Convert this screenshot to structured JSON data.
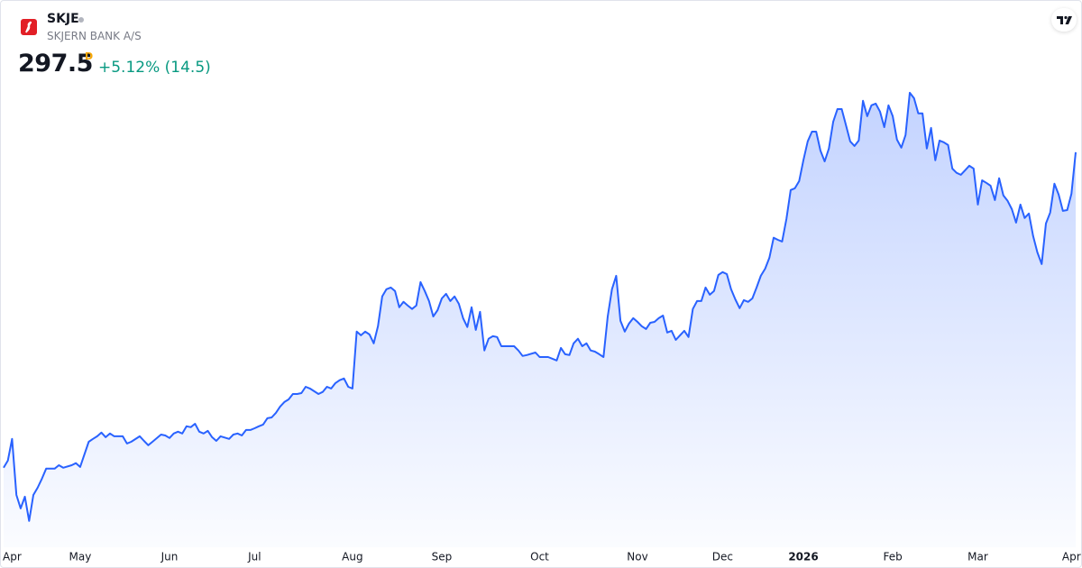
{
  "header": {
    "symbol": "SKJE",
    "name": "SKJERN BANK A/S",
    "price": "297.5",
    "interval": "D",
    "change": "+5.12% (14.5)"
  },
  "chart_data": {
    "type": "line",
    "color": "#2962ff",
    "x": [
      0,
      1,
      2,
      3,
      4,
      5,
      6,
      7,
      8,
      9,
      10,
      12,
      13,
      14,
      16,
      17,
      18,
      20,
      21,
      22,
      23,
      24,
      25,
      26,
      28,
      29,
      30,
      32,
      33,
      34,
      35,
      37,
      38,
      39,
      40,
      41,
      42,
      43,
      44,
      45,
      46,
      47,
      48,
      49,
      50,
      51,
      53,
      54,
      55,
      56,
      57,
      58,
      59,
      60,
      61,
      62,
      63,
      64,
      65,
      66,
      67,
      68,
      69,
      70,
      71,
      72,
      74,
      75,
      76,
      77,
      78,
      79,
      80,
      81,
      82,
      83,
      84,
      85,
      86,
      87,
      88,
      89,
      90,
      91,
      92,
      93,
      94,
      95,
      96,
      97,
      98,
      99,
      100,
      101,
      102,
      103,
      104,
      105,
      106,
      107,
      108,
      109,
      110,
      111,
      112,
      113,
      114,
      115,
      116,
      117,
      119,
      120,
      121,
      122,
      123,
      125,
      126,
      127,
      128,
      129,
      130,
      131,
      132,
      133,
      134,
      135,
      136,
      137,
      138,
      139,
      140,
      141,
      142,
      143,
      144,
      145,
      146,
      147,
      148,
      149,
      150,
      151,
      152,
      153,
      154,
      155,
      156,
      157,
      158,
      159,
      160,
      161,
      162,
      163,
      164,
      165,
      166,
      167,
      168,
      169,
      170,
      171,
      172,
      173,
      174,
      175,
      176,
      177,
      178,
      179,
      180,
      181,
      182,
      183,
      184,
      185,
      186,
      187,
      188,
      189,
      190,
      191,
      192,
      193,
      194,
      195,
      196,
      197,
      198,
      199,
      200,
      201,
      202,
      203,
      204,
      205,
      206,
      207,
      208,
      209,
      210,
      211,
      212,
      213,
      214,
      215,
      216,
      217,
      218,
      219,
      220,
      221,
      222,
      223,
      224,
      225,
      226,
      227,
      228,
      229,
      230,
      231,
      232,
      233,
      234,
      235,
      236,
      237,
      238,
      239,
      240,
      241,
      242,
      243,
      244,
      245,
      246,
      247,
      248,
      249,
      250,
      251,
      252
    ],
    "values": [
      187.2,
      189.7,
      197.3,
      177.7,
      173.0,
      177.1,
      168.6,
      177.7,
      180.2,
      183.4,
      186.9,
      186.9,
      188.1,
      187.2,
      188.1,
      188.8,
      187.5,
      196.3,
      197.3,
      198.2,
      199.5,
      197.9,
      199.2,
      198.2,
      198.2,
      195.7,
      196.3,
      198.2,
      196.6,
      195.1,
      196.3,
      198.8,
      198.5,
      197.6,
      199.2,
      199.8,
      199.2,
      201.7,
      201.4,
      202.6,
      199.8,
      199.2,
      200.1,
      197.9,
      196.6,
      198.2,
      197.3,
      198.8,
      199.2,
      198.5,
      200.4,
      200.4,
      201.0,
      201.7,
      202.3,
      204.5,
      204.8,
      206.4,
      208.6,
      210.2,
      211.1,
      213.0,
      213.0,
      213.3,
      215.5,
      214.9,
      213.0,
      213.7,
      215.5,
      214.9,
      216.8,
      217.8,
      218.4,
      215.5,
      214.9,
      234.8,
      233.5,
      234.8,
      233.8,
      230.7,
      236.7,
      247.1,
      249.6,
      250.2,
      249.0,
      243.3,
      245.2,
      243.9,
      242.7,
      243.9,
      252.1,
      249.0,
      245.5,
      240.1,
      242.3,
      246.4,
      248.0,
      245.5,
      247.1,
      244.5,
      239.5,
      236.4,
      243.3,
      235.4,
      241.7,
      228.2,
      232.3,
      233.2,
      232.9,
      229.7,
      229.7,
      229.7,
      228.2,
      226.3,
      226.6,
      227.5,
      225.9,
      225.9,
      225.9,
      225.3,
      224.7,
      229.1,
      226.9,
      226.6,
      230.7,
      232.3,
      229.7,
      230.7,
      228.2,
      227.8,
      226.9,
      225.9,
      240.1,
      249.6,
      254.3,
      238.6,
      234.8,
      237.6,
      239.5,
      238.2,
      236.7,
      235.7,
      237.9,
      238.2,
      239.5,
      240.4,
      234.5,
      235.1,
      231.9,
      233.5,
      235.1,
      232.9,
      242.7,
      245.5,
      245.5,
      250.2,
      247.7,
      249.0,
      254.6,
      255.6,
      254.9,
      249.6,
      246.1,
      243.0,
      245.8,
      245.2,
      246.4,
      250.2,
      254.3,
      256.8,
      260.6,
      267.6,
      266.9,
      266.3,
      274.2,
      284.3,
      284.9,
      287.4,
      294.7,
      301.3,
      304.7,
      304.7,
      298.1,
      294.3,
      298.8,
      308.2,
      312.6,
      312.6,
      307.0,
      301.3,
      299.7,
      301.6,
      315.5,
      310.1,
      313.9,
      314.5,
      311.7,
      306.3,
      313.9,
      310.1,
      301.9,
      299.1,
      303.5,
      318.3,
      316.4,
      311.1,
      311.1,
      298.8,
      306.0,
      294.7,
      301.6,
      301.0,
      300.0,
      291.8,
      290.3,
      289.6,
      291.2,
      292.8,
      291.8,
      279.2,
      287.7,
      286.8,
      285.8,
      280.8,
      288.4,
      282.4,
      280.5,
      277.6,
      272.9,
      279.2,
      274.5,
      276.1,
      268.2,
      262.5,
      258.4,
      272.6,
      276.4,
      286.5,
      282.7,
      277.0,
      277.3,
      283.0,
      297.5
    ],
    "xlim": [
      0,
      252
    ],
    "ylim": [
      161.3,
      331.5
    ],
    "xticks": [
      {
        "value": 2,
        "label": "Apr"
      },
      {
        "value": 18,
        "label": "May"
      },
      {
        "value": 39,
        "label": "Jun"
      },
      {
        "value": 59,
        "label": "Jul"
      },
      {
        "value": 82,
        "label": "Aug"
      },
      {
        "value": 103,
        "label": "Sep"
      },
      {
        "value": 126,
        "label": "Oct"
      },
      {
        "value": 149,
        "label": "Nov"
      },
      {
        "value": 169,
        "label": "Dec"
      },
      {
        "value": 188,
        "label": "2026"
      },
      {
        "value": 209,
        "label": "Feb"
      },
      {
        "value": 229,
        "label": "Mar"
      },
      {
        "value": 251,
        "label": "Apr"
      }
    ]
  }
}
